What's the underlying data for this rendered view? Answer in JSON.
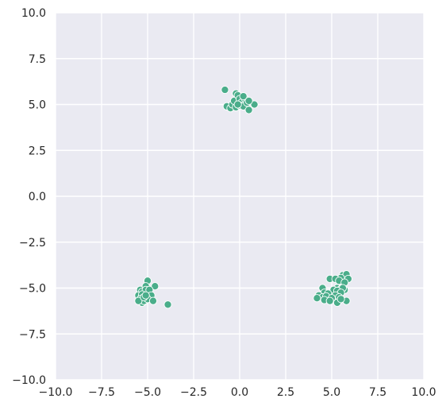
{
  "chart_data": {
    "type": "scatter",
    "title": "",
    "xlabel": "",
    "ylabel": "",
    "xlim": [
      -10,
      10
    ],
    "ylim": [
      -10,
      10
    ],
    "x_ticks": [
      "−10.0",
      "−7.5",
      "−5.0",
      "−2.5",
      "0.0",
      "2.5",
      "5.0",
      "7.5",
      "10.0"
    ],
    "y_ticks": [
      "10.0",
      "7.5",
      "5.0",
      "2.5",
      "0.0",
      "−2.5",
      "−5.0",
      "−7.5",
      "−10.0"
    ],
    "grid": true,
    "colors": {
      "background": "#eaeaf2",
      "grid": "#ffffff",
      "marker": "#4aad8a",
      "marker_edge": "#ffffff"
    },
    "series": [
      {
        "points": [
          [
            -0.8,
            5.8
          ],
          [
            -0.7,
            4.9
          ],
          [
            -0.5,
            4.8
          ],
          [
            -0.4,
            5.0
          ],
          [
            -0.3,
            5.2
          ],
          [
            -0.2,
            5.6
          ],
          [
            -0.1,
            5.5
          ],
          [
            0.0,
            5.3
          ],
          [
            0.1,
            5.1
          ],
          [
            -0.2,
            4.85
          ],
          [
            0.0,
            4.95
          ],
          [
            0.2,
            4.9
          ],
          [
            0.3,
            5.3
          ],
          [
            0.4,
            5.1
          ],
          [
            0.5,
            4.7
          ],
          [
            0.8,
            5.0
          ],
          [
            -0.1,
            5.0
          ],
          [
            0.2,
            5.45
          ],
          [
            0.5,
            5.2
          ],
          [
            -5.0,
            -4.6
          ],
          [
            -5.1,
            -4.9
          ],
          [
            -4.6,
            -4.9
          ],
          [
            -5.4,
            -5.1
          ],
          [
            -5.3,
            -5.2
          ],
          [
            -5.1,
            -5.1
          ],
          [
            -4.9,
            -5.1
          ],
          [
            -5.5,
            -5.4
          ],
          [
            -5.3,
            -5.35
          ],
          [
            -4.9,
            -5.5
          ],
          [
            -4.8,
            -5.4
          ],
          [
            -5.4,
            -5.6
          ],
          [
            -5.3,
            -5.8
          ],
          [
            -5.2,
            -5.7
          ],
          [
            -5.0,
            -5.6
          ],
          [
            -4.7,
            -5.7
          ],
          [
            -5.5,
            -5.7
          ],
          [
            -3.9,
            -5.9
          ],
          [
            -5.2,
            -5.5
          ],
          [
            -5.1,
            -5.4
          ],
          [
            5.6,
            -4.3
          ],
          [
            5.8,
            -4.25
          ],
          [
            5.5,
            -4.45
          ],
          [
            5.9,
            -4.5
          ],
          [
            4.9,
            -4.5
          ],
          [
            5.2,
            -4.5
          ],
          [
            5.4,
            -4.6
          ],
          [
            5.7,
            -4.7
          ],
          [
            4.5,
            -5.0
          ],
          [
            5.3,
            -5.0
          ],
          [
            5.1,
            -5.1
          ],
          [
            5.5,
            -5.05
          ],
          [
            5.7,
            -5.1
          ],
          [
            5.6,
            -5.0
          ],
          [
            5.3,
            -5.15
          ],
          [
            4.6,
            -5.25
          ],
          [
            4.8,
            -5.3
          ],
          [
            5.5,
            -5.25
          ],
          [
            4.3,
            -5.4
          ],
          [
            4.5,
            -5.5
          ],
          [
            4.7,
            -5.45
          ],
          [
            5.2,
            -5.4
          ],
          [
            5.4,
            -5.5
          ],
          [
            5.0,
            -5.55
          ],
          [
            4.6,
            -5.65
          ],
          [
            4.9,
            -5.7
          ],
          [
            5.3,
            -5.8
          ],
          [
            5.8,
            -5.7
          ],
          [
            5.5,
            -5.6
          ],
          [
            4.2,
            -5.55
          ]
        ]
      }
    ]
  }
}
